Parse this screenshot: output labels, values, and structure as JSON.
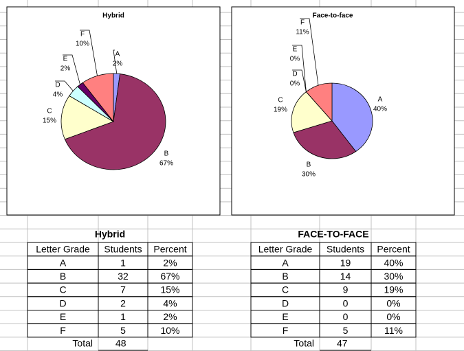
{
  "chart_data": [
    {
      "type": "pie",
      "title": "Hybrid",
      "categories": [
        "A",
        "B",
        "C",
        "D",
        "E",
        "F"
      ],
      "values": [
        2,
        67,
        15,
        4,
        2,
        10
      ],
      "value_labels": [
        "2%",
        "67%",
        "15%",
        "4%",
        "2%",
        "10%"
      ],
      "colors": [
        "#9999ff",
        "#993366",
        "#ffffcc",
        "#ccffff",
        "#660066",
        "#ff8080"
      ]
    },
    {
      "type": "pie",
      "title": "Face-to-face",
      "categories": [
        "A",
        "B",
        "C",
        "D",
        "E",
        "F"
      ],
      "values": [
        40,
        30,
        19,
        0,
        0,
        11
      ],
      "value_labels": [
        "40%",
        "30%",
        "19%",
        "0%",
        "0%",
        "11%"
      ],
      "colors": [
        "#9999ff",
        "#993366",
        "#ffffcc",
        "#ccffff",
        "#660066",
        "#ff8080"
      ]
    }
  ],
  "tables": [
    {
      "title": "Hybrid",
      "header": [
        "Letter Grade",
        "Students",
        "Percent"
      ],
      "rows": [
        [
          "A",
          "1",
          "2%"
        ],
        [
          "B",
          "32",
          "67%"
        ],
        [
          "C",
          "7",
          "15%"
        ],
        [
          "D",
          "2",
          "4%"
        ],
        [
          "E",
          "1",
          "2%"
        ],
        [
          "F",
          "5",
          "10%"
        ]
      ],
      "total": [
        "Total",
        "48"
      ]
    },
    {
      "title": "FACE-TO-FACE",
      "header": [
        "Letter Grade",
        "Students",
        "Percent"
      ],
      "rows": [
        [
          "A",
          "19",
          "40%"
        ],
        [
          "B",
          "14",
          "30%"
        ],
        [
          "C",
          "9",
          "19%"
        ],
        [
          "D",
          "0",
          "0%"
        ],
        [
          "E",
          "0",
          "0%"
        ],
        [
          "F",
          "5",
          "11%"
        ]
      ],
      "total": [
        "Total",
        "47"
      ]
    }
  ]
}
